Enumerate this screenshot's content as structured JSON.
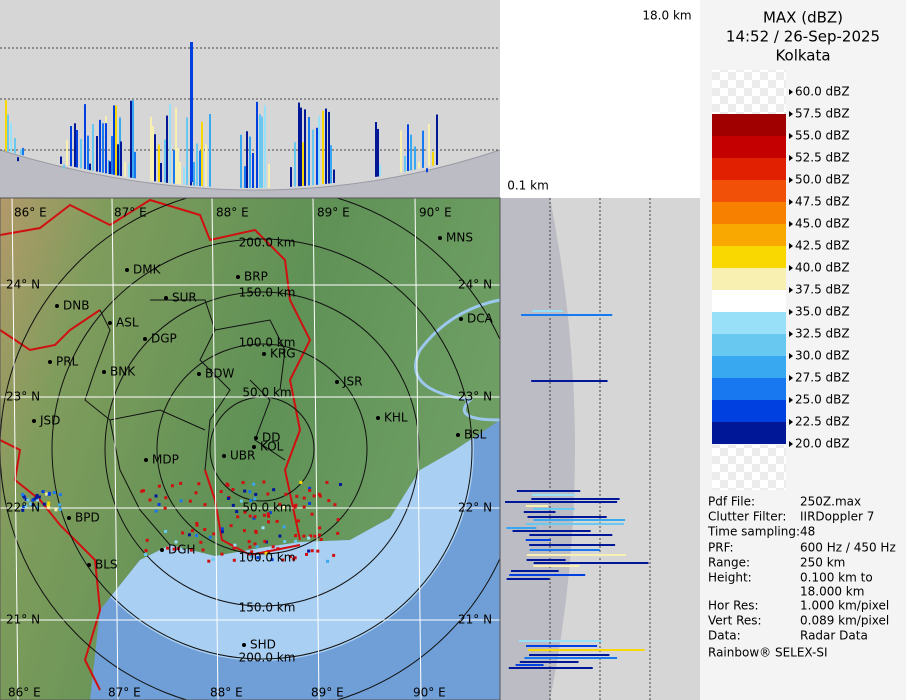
{
  "header": {
    "title": "MAX (dBZ)",
    "time": "14:52 / 26-Sep-2025",
    "site": "Kolkata"
  },
  "section_height": {
    "top": "18.0 km",
    "bottom": "0.1 km"
  },
  "legend": [
    {
      "label": "60.0 dBZ"
    },
    {
      "label": "57.5 dBZ",
      "color": "#a00000"
    },
    {
      "label": "55.0 dBZ",
      "color": "#c40000"
    },
    {
      "label": "52.5 dBZ",
      "color": "#e02000"
    },
    {
      "label": "50.0 dBZ",
      "color": "#f05008"
    },
    {
      "label": "47.5 dBZ",
      "color": "#f88000"
    },
    {
      "label": "45.0 dBZ",
      "color": "#f8a800"
    },
    {
      "label": "42.5 dBZ",
      "color": "#f8d800"
    },
    {
      "label": "40.0 dBZ",
      "color": "#f8f0b0"
    },
    {
      "label": "37.5 dBZ",
      "color": "#ffffff"
    },
    {
      "label": "35.0 dBZ",
      "color": "#98e0f8"
    },
    {
      "label": "32.5 dBZ",
      "color": "#68c8f0"
    },
    {
      "label": "30.0 dBZ",
      "color": "#38a8f0"
    },
    {
      "label": "27.5 dBZ",
      "color": "#1878f0"
    },
    {
      "label": "25.0 dBZ",
      "color": "#0040e0"
    },
    {
      "label": "22.5 dBZ",
      "color": "#001898"
    },
    {
      "label": "20.0 dBZ"
    }
  ],
  "info": [
    [
      "Pdf File:",
      "250Z.max"
    ],
    [
      "Clutter Filter:",
      "IIRDoppler 7"
    ],
    [
      "Time sampling:48"
    ],
    [
      "PRF:",
      "600 Hz / 450 Hz"
    ],
    [
      "Range:",
      "250 km"
    ],
    [
      "Height:",
      "0.100 km to",
      "18.000 km"
    ],
    [
      "Hor Res:",
      "1.000 km/pixel"
    ],
    [
      "Vert Res:",
      "0.089 km/pixel"
    ],
    [
      "Data:",
      "Radar Data"
    ],
    [
      "Rainbow® SELEX-SI"
    ]
  ],
  "map": {
    "lon_labels": [
      "86° E",
      "87° E",
      "88° E",
      "89° E",
      "90° E"
    ],
    "lat_labels": [
      "24° N",
      "23° N",
      "22° N",
      "21° N"
    ],
    "range_labels": [
      "200.0 km",
      "150.0 km",
      "100.0 km",
      "50.0 km",
      "50.0 km",
      "100.0 km",
      "150.0 km",
      "200.0 km"
    ],
    "cities": [
      "MNS",
      "DMK",
      "BRP",
      "DNB",
      "SUR",
      "ASL",
      "DGP",
      "DCA",
      "KRG",
      "PRL",
      "BNK",
      "BDW",
      "JSR",
      "KHL",
      "JSD",
      "BSL",
      "DD",
      "KOL",
      "MDP",
      "UBR",
      "BPD",
      "DGH",
      "BLS",
      "SHD"
    ]
  }
}
